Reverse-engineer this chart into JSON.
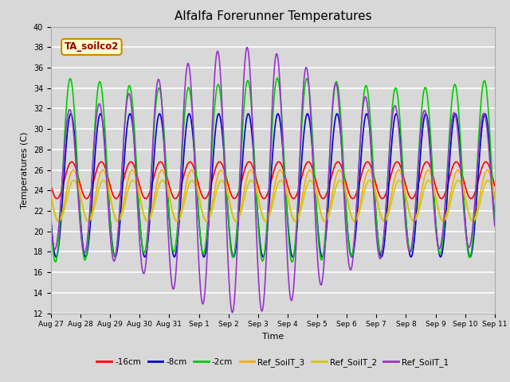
{
  "title": "Alfalfa Forerunner Temperatures",
  "xlabel": "Time",
  "ylabel": "Temperatures (C)",
  "ylim": [
    12,
    40
  ],
  "annotation": "TA_soilco2",
  "legend": [
    "-16cm",
    "-8cm",
    "-2cm",
    "Ref_SoilT_3",
    "Ref_SoilT_2",
    "Ref_SoilT_1"
  ],
  "colors": [
    "#ff0000",
    "#0000cc",
    "#00cc00",
    "#ffaa00",
    "#cccc00",
    "#9933cc"
  ],
  "xtick_labels": [
    "Aug 27",
    "Aug 28",
    "Aug 29",
    "Aug 30",
    "Aug 31",
    "Sep 1",
    "Sep 2",
    "Sep 3",
    "Sep 4",
    "Sep 5",
    "Sep 6",
    "Sep 7",
    "Sep 8",
    "Sep 9",
    "Sep 10",
    "Sep 11"
  ],
  "bg_color": "#d8d8d8",
  "fig_bg": "#d8d8d8"
}
